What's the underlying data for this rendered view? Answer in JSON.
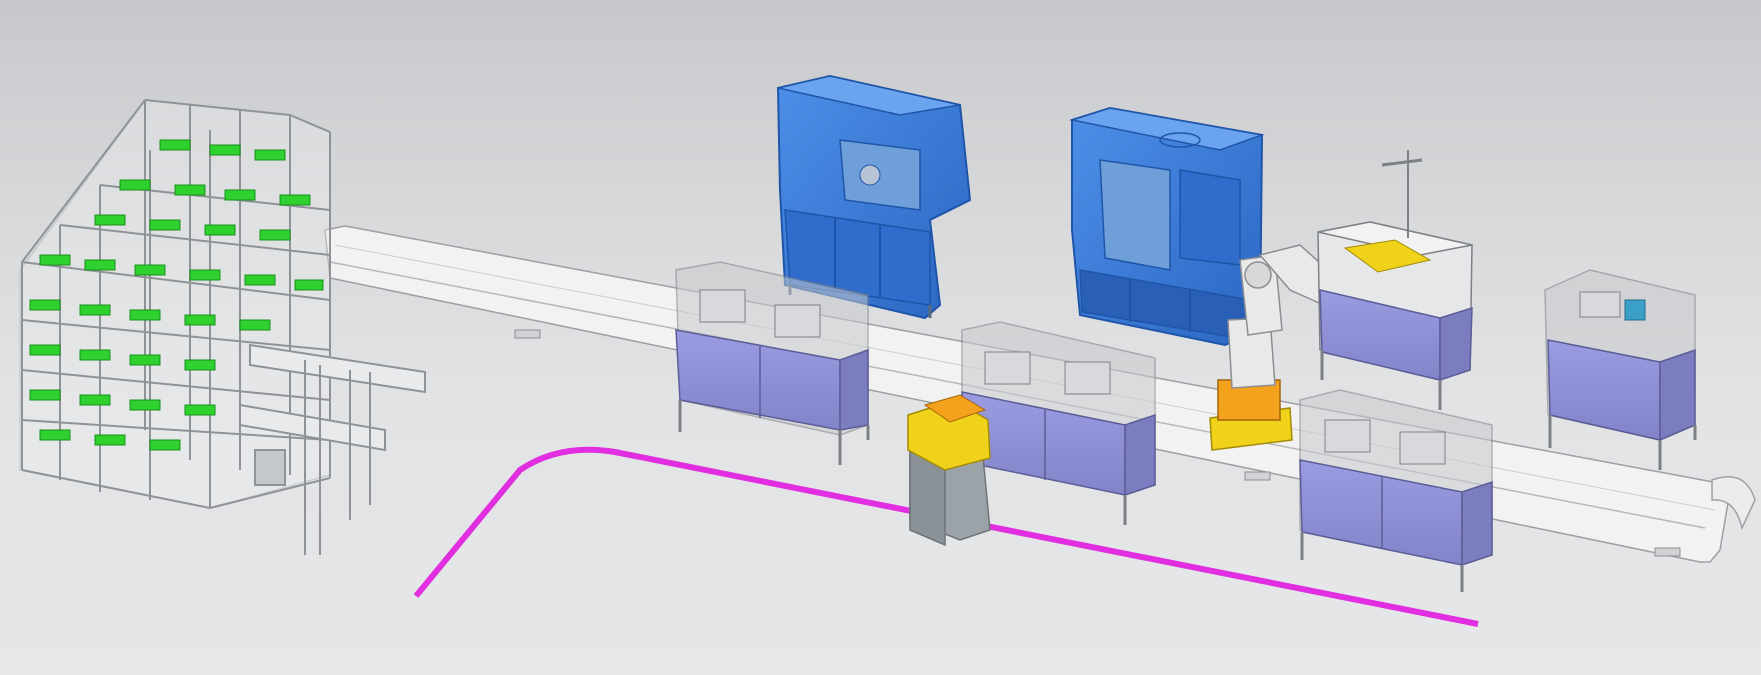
{
  "scene": {
    "kind": "cad-3d-assembly",
    "background": "#d9dadc",
    "colors": {
      "machine_blue": "#3a7bd8",
      "machine_blue_dark": "#1f55a8",
      "cabinet_purple": "#8e8fd2",
      "frame_gray": "#a9adb2",
      "shelf_green": "#2fd12f",
      "agv_path_magenta": "#e02ee0",
      "agv_yellow": "#f1d21a",
      "rail_white": "#f4f4f4",
      "robot_white": "#e9e9e9"
    },
    "components": [
      {
        "name": "storage-rack",
        "icon": "rack-icon"
      },
      {
        "name": "linear-rail",
        "icon": "rail-icon"
      },
      {
        "name": "cnc-lathe",
        "icon": "lathe-icon"
      },
      {
        "name": "machining-center",
        "icon": "mill-icon"
      },
      {
        "name": "industrial-robot",
        "icon": "robot-arm-icon"
      },
      {
        "name": "fixture-station",
        "icon": "fixture-icon"
      },
      {
        "name": "agv",
        "icon": "agv-icon"
      },
      {
        "name": "agv-path",
        "icon": "path-icon"
      },
      {
        "name": "inspection-station",
        "icon": "inspection-icon"
      }
    ],
    "labels": []
  }
}
